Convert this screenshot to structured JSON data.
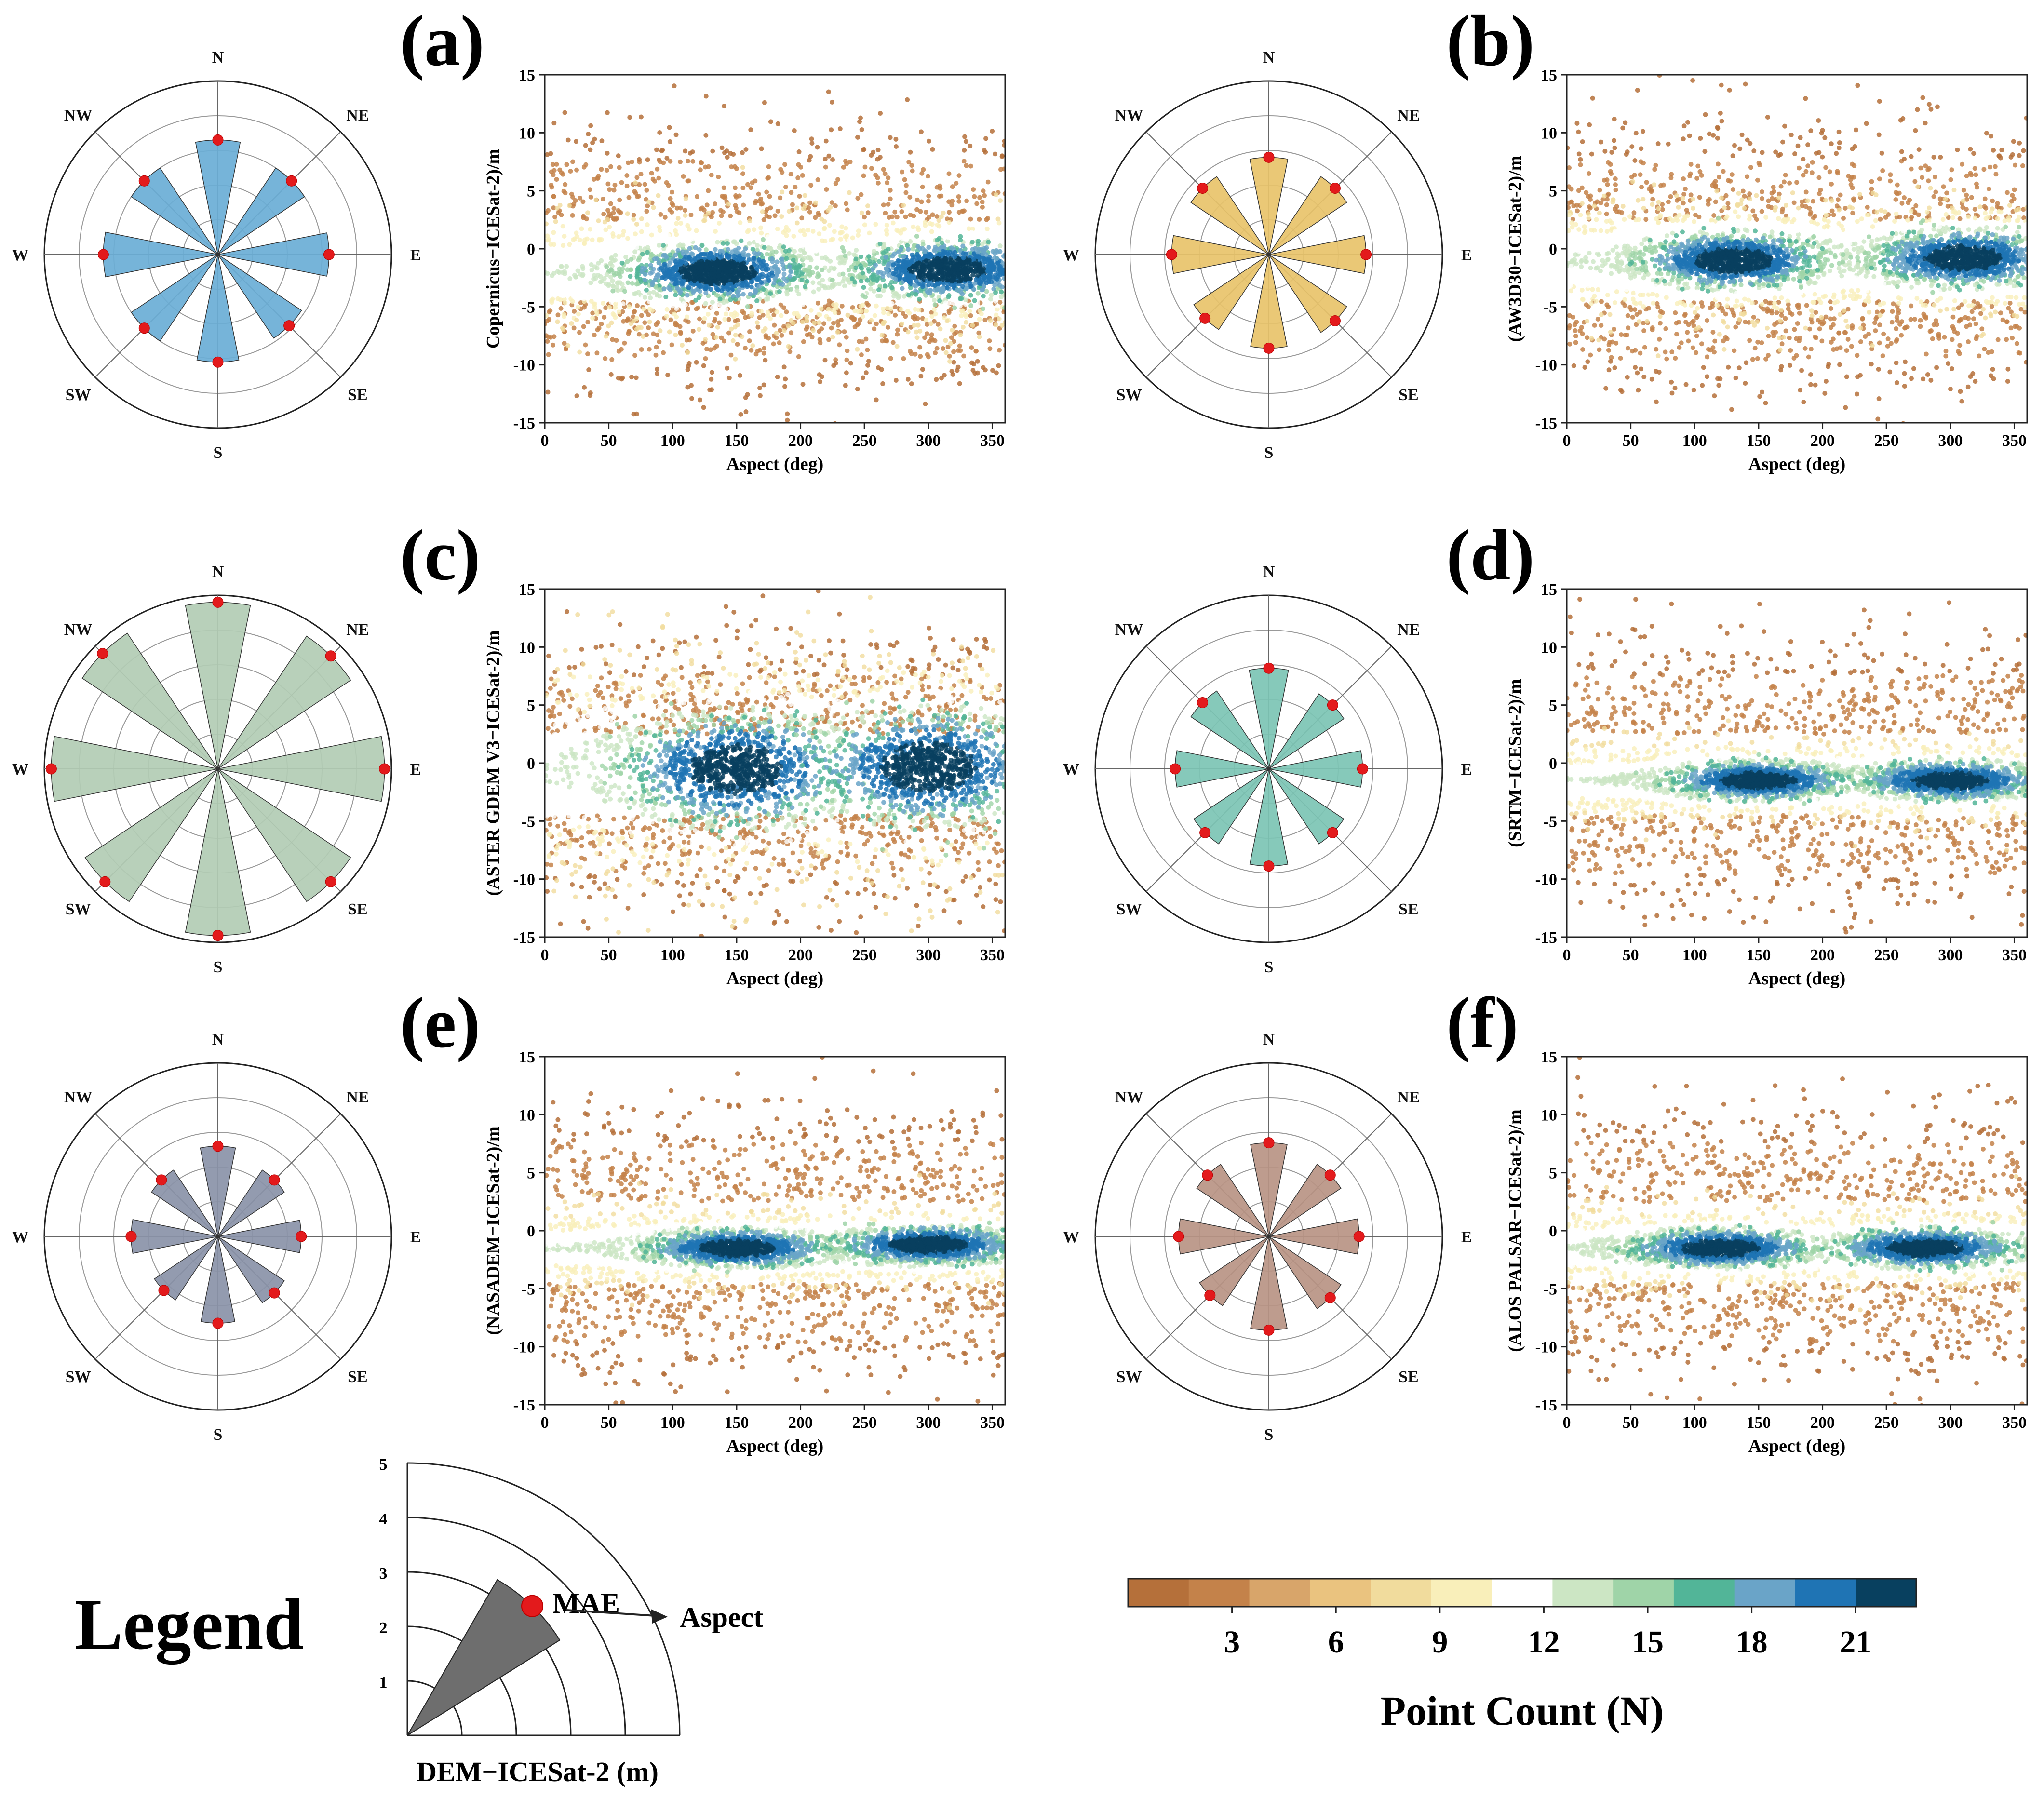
{
  "chart_data": [
    {
      "panel": "(a)",
      "type": "scatter",
      "xlabel": "Aspect (deg)",
      "ylabel": "Copernicus−ICESat-2)/m",
      "xlim": [
        0,
        360
      ],
      "ylim": [
        -15,
        15
      ],
      "xticks": [
        0,
        50,
        100,
        150,
        200,
        250,
        300,
        350
      ],
      "yticks": [
        -15,
        -10,
        -5,
        0,
        5,
        10,
        15
      ],
      "density_centers": [
        {
          "x": 135,
          "y": -2.0
        },
        {
          "x": 315,
          "y": -1.8
        }
      ],
      "rose": {
        "color": "#6aaed6",
        "directions": [
          "N",
          "NE",
          "E",
          "SE",
          "S",
          "SW",
          "W",
          "NW"
        ],
        "mae": [
          3.3,
          3.0,
          3.2,
          2.9,
          3.1,
          3.0,
          3.3,
          3.0
        ],
        "rmax": 5
      }
    },
    {
      "panel": "(b)",
      "type": "scatter",
      "xlabel": "Aspect (deg)",
      "ylabel": "(AW3D30−ICESat-2)/m",
      "xlim": [
        0,
        360
      ],
      "ylim": [
        -15,
        15
      ],
      "xticks": [
        0,
        50,
        100,
        150,
        200,
        250,
        300,
        350
      ],
      "yticks": [
        -15,
        -10,
        -5,
        0,
        5,
        10,
        15
      ],
      "density_centers": [
        {
          "x": 130,
          "y": -1.0
        },
        {
          "x": 310,
          "y": -0.8
        }
      ],
      "rose": {
        "color": "#e8c36a",
        "directions": [
          "N",
          "NE",
          "E",
          "SE",
          "S",
          "SW",
          "W",
          "NW"
        ],
        "mae": [
          2.8,
          2.7,
          2.8,
          2.7,
          2.7,
          2.6,
          2.8,
          2.7
        ],
        "rmax": 5
      }
    },
    {
      "panel": "(c)",
      "type": "scatter",
      "xlabel": "Aspect (deg)",
      "ylabel": "(ASTER GDEM V3−ICESat-2)/m",
      "xlim": [
        0,
        360
      ],
      "ylim": [
        -15,
        15
      ],
      "xticks": [
        0,
        50,
        100,
        150,
        200,
        250,
        300,
        350
      ],
      "yticks": [
        -15,
        -10,
        -5,
        0,
        5,
        10,
        15
      ],
      "density_centers": [
        {
          "x": 150,
          "y": -0.5
        },
        {
          "x": 300,
          "y": -0.3
        }
      ],
      "rose": {
        "color": "#b2ccb4",
        "directions": [
          "N",
          "NE",
          "E",
          "SE",
          "S",
          "SW",
          "W",
          "NW"
        ],
        "mae": [
          4.8,
          4.6,
          4.8,
          4.6,
          4.8,
          4.6,
          4.8,
          4.7
        ],
        "rmax": 5
      }
    },
    {
      "panel": "(d)",
      "type": "scatter",
      "xlabel": "Aspect (deg)",
      "ylabel": "(SRTM−ICESat-2)/m",
      "xlim": [
        0,
        360
      ],
      "ylim": [
        -15,
        15
      ],
      "xticks": [
        0,
        50,
        100,
        150,
        200,
        250,
        300,
        350
      ],
      "yticks": [
        -15,
        -10,
        -5,
        0,
        5,
        10,
        15
      ],
      "density_centers": [
        {
          "x": 150,
          "y": -1.5
        },
        {
          "x": 300,
          "y": -1.5
        }
      ],
      "rose": {
        "color": "#7cc4b4",
        "directions": [
          "N",
          "NE",
          "E",
          "SE",
          "S",
          "SW",
          "W",
          "NW"
        ],
        "mae": [
          2.9,
          2.6,
          2.7,
          2.6,
          2.8,
          2.6,
          2.7,
          2.7
        ],
        "rmax": 5
      }
    },
    {
      "panel": "(e)",
      "type": "scatter",
      "xlabel": "Aspect (deg)",
      "ylabel": "(NASADEM−ICESat-2)/m",
      "xlim": [
        0,
        360
      ],
      "ylim": [
        -15,
        15
      ],
      "xticks": [
        0,
        50,
        100,
        150,
        200,
        250,
        300,
        350
      ],
      "yticks": [
        -15,
        -10,
        -5,
        0,
        5,
        10,
        15
      ],
      "density_centers": [
        {
          "x": 150,
          "y": -1.5
        },
        {
          "x": 300,
          "y": -1.2
        }
      ],
      "rose": {
        "color": "#8a93a8",
        "directions": [
          "N",
          "NE",
          "E",
          "SE",
          "S",
          "SW",
          "W",
          "NW"
        ],
        "mae": [
          2.6,
          2.3,
          2.4,
          2.3,
          2.5,
          2.2,
          2.5,
          2.3
        ],
        "rmax": 5
      }
    },
    {
      "panel": "(f)",
      "type": "scatter",
      "xlabel": "Aspect (deg)",
      "ylabel": "(ALOS PALSAR−ICESat-2)/m",
      "xlim": [
        0,
        360
      ],
      "ylim": [
        -15,
        15
      ],
      "xticks": [
        0,
        50,
        100,
        150,
        200,
        250,
        300,
        350
      ],
      "yticks": [
        -15,
        -10,
        -5,
        0,
        5,
        10,
        15
      ],
      "density_centers": [
        {
          "x": 120,
          "y": -1.5
        },
        {
          "x": 280,
          "y": -1.5
        }
      ],
      "rose": {
        "color": "#b89484",
        "directions": [
          "N",
          "NE",
          "E",
          "SE",
          "S",
          "SW",
          "W",
          "NW"
        ],
        "mae": [
          2.7,
          2.5,
          2.6,
          2.5,
          2.7,
          2.4,
          2.6,
          2.5
        ],
        "rmax": 5
      }
    }
  ],
  "compass_labels": [
    "N",
    "NE",
    "E",
    "SE",
    "S",
    "SW",
    "W",
    "NW"
  ],
  "legend": {
    "title": "Legend",
    "radial_ticks": [
      "1",
      "2",
      "3",
      "4",
      "5"
    ],
    "mae_label": "MAE",
    "aspect_label": "Aspect",
    "axis_label": "DEM−ICESat-2 (m)",
    "example_mae": 3.3
  },
  "colorbar": {
    "label": "Point Count (N)",
    "ticks": [
      "3",
      "6",
      "9",
      "12",
      "15",
      "18",
      "21"
    ],
    "colors": [
      "#b5703a",
      "#c4824a",
      "#d8a56a",
      "#eac37f",
      "#f1dc9d",
      "#f9efba",
      "#ffffff",
      "#cce6c4",
      "#9fd4a8",
      "#52b598",
      "#6aa4c8",
      "#1f74b4",
      "#08405f"
    ]
  }
}
